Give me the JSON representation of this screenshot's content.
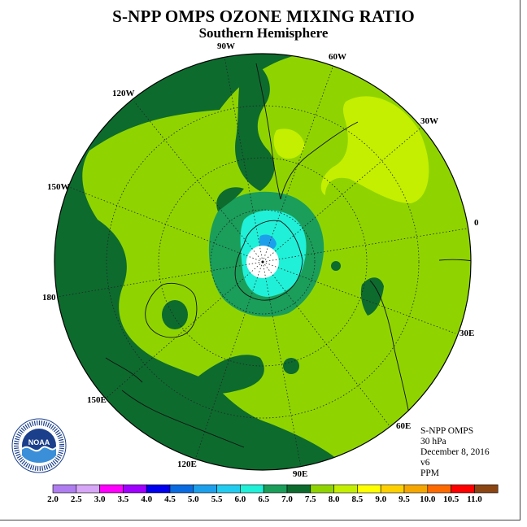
{
  "title": "S-NPP OMPS OZONE MIXING RATIO",
  "subtitle": "Southern Hemisphere",
  "longitude_labels": [
    "90W",
    "60W",
    "30W",
    "0",
    "30E",
    "60E",
    "90E",
    "120E",
    "150E",
    "180",
    "150W",
    "120W"
  ],
  "info": {
    "product": "S-NPP OMPS",
    "level": "30 hPa",
    "date": "December 8, 2016",
    "version": "v6",
    "units": "PPM"
  },
  "logo_text": "NOAA",
  "colorbar": {
    "labels": [
      "2.0",
      "2.5",
      "3.0",
      "3.5",
      "4.0",
      "4.5",
      "5.0",
      "5.5",
      "6.0",
      "6.5",
      "7.0",
      "7.5",
      "8.0",
      "8.5",
      "9.0",
      "9.5",
      "10.0",
      "10.5",
      "11.0"
    ],
    "colors": [
      "#b07df0",
      "#d8a6f8",
      "#ff00ff",
      "#9f00ff",
      "#0000ee",
      "#0a6be0",
      "#1ca0ec",
      "#22ccf0",
      "#20f0d8",
      "#1a9e5a",
      "#0d6b2e",
      "#8fd400",
      "#c4ef00",
      "#ffff00",
      "#ffd000",
      "#f5a700",
      "#ff6a00",
      "#ff0000",
      "#8b4513"
    ]
  }
}
